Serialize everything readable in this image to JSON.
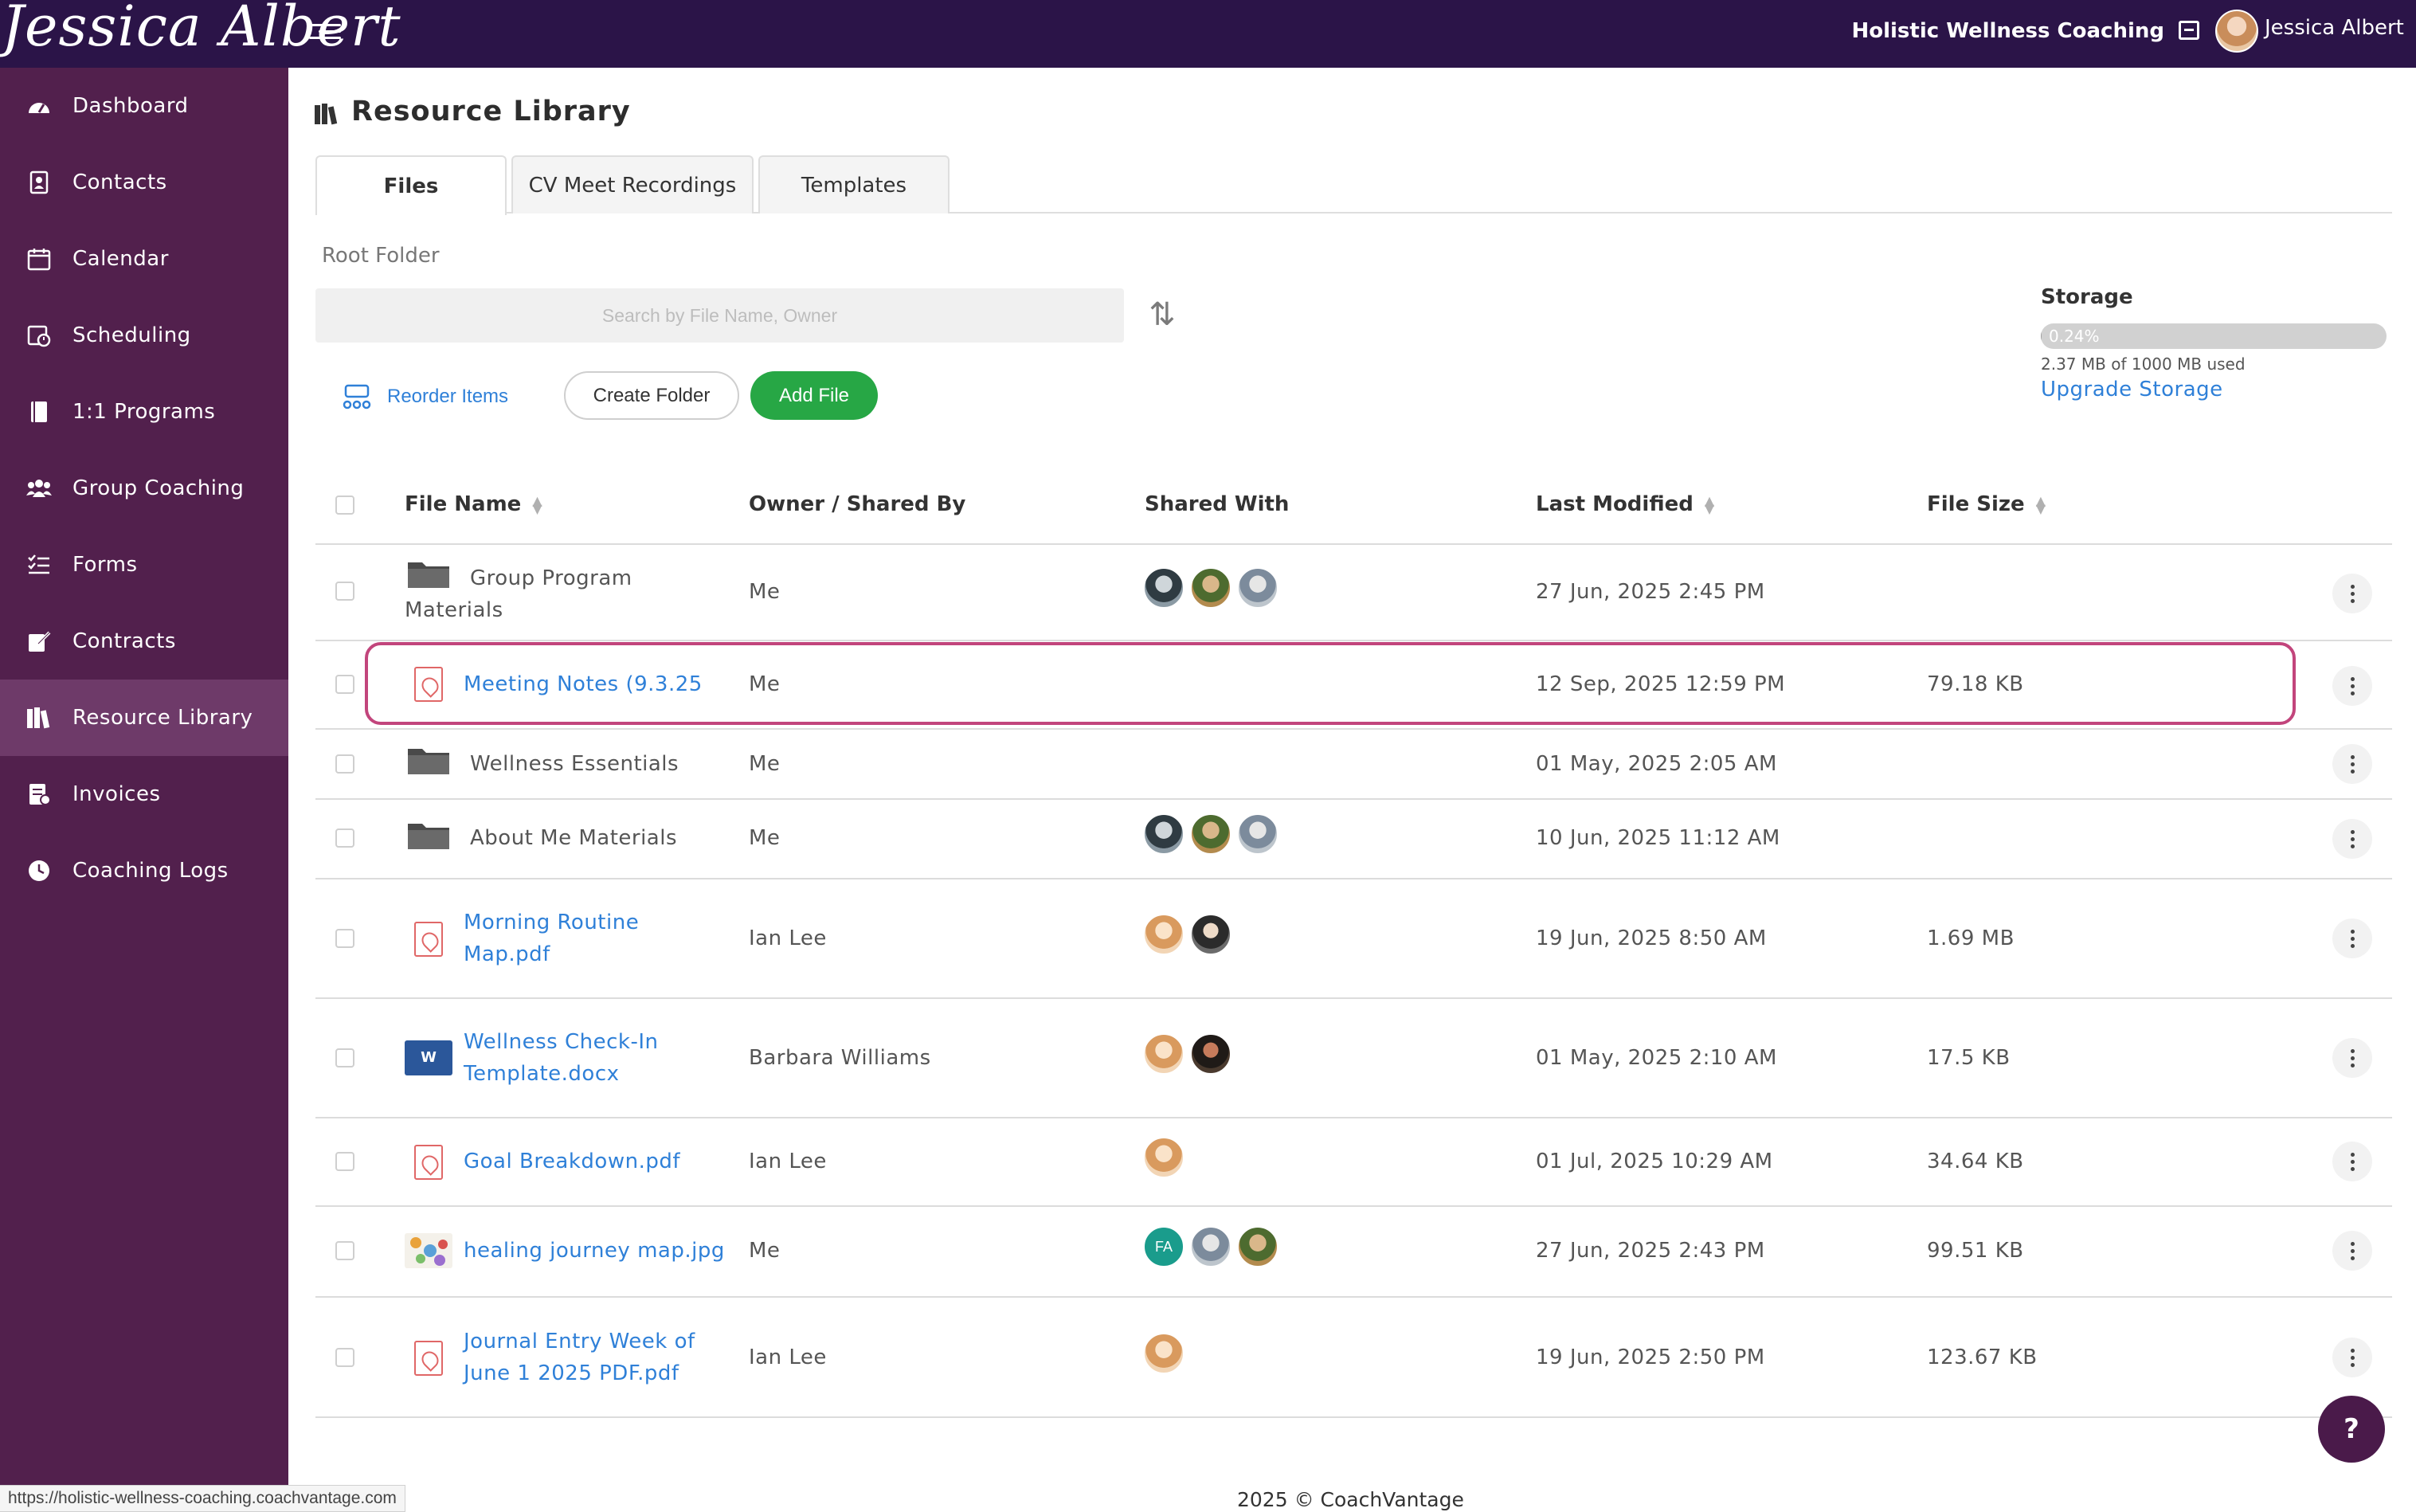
{
  "brand": {
    "logo_text": "Jessica Albert"
  },
  "header": {
    "org_name": "Holistic Wellness Coaching",
    "user_name": "Jessica Albert"
  },
  "sidebar": {
    "items": [
      {
        "label": "Dashboard",
        "icon": "dashboard-icon"
      },
      {
        "label": "Contacts",
        "icon": "contacts-icon"
      },
      {
        "label": "Calendar",
        "icon": "calendar-icon"
      },
      {
        "label": "Scheduling",
        "icon": "scheduling-icon"
      },
      {
        "label": "1:1 Programs",
        "icon": "book-icon"
      },
      {
        "label": "Group Coaching",
        "icon": "users-icon"
      },
      {
        "label": "Forms",
        "icon": "list-icon"
      },
      {
        "label": "Contracts",
        "icon": "signature-icon"
      },
      {
        "label": "Resource Library",
        "icon": "books-icon",
        "active": true
      },
      {
        "label": "Invoices",
        "icon": "invoice-icon"
      },
      {
        "label": "Coaching Logs",
        "icon": "clock-icon"
      }
    ]
  },
  "page": {
    "title": "Resource Library"
  },
  "tabs": [
    {
      "label": "Files",
      "active": true
    },
    {
      "label": "CV Meet Recordings",
      "active": false
    },
    {
      "label": "Templates",
      "active": false
    }
  ],
  "breadcrumb": {
    "label": "Root Folder"
  },
  "search": {
    "placeholder": "Search by File Name, Owner",
    "value": ""
  },
  "actions": {
    "reorder": "Reorder Items",
    "create_folder": "Create Folder",
    "add_file": "Add File"
  },
  "storage": {
    "title": "Storage",
    "percent_label": "0.24%",
    "fraction_used": 0.0024,
    "usage_text": "2.37 MB of 1000 MB used",
    "upgrade_label": "Upgrade Storage"
  },
  "table": {
    "columns": [
      "File Name",
      "Owner / Shared By",
      "Shared With",
      "Last Modified",
      "File Size"
    ],
    "rows": [
      {
        "type": "folder",
        "name": "Group Program Materials",
        "owner": "Me",
        "shared_with": [
          "av-a",
          "av-b",
          "av-c"
        ],
        "modified": "27 Jun, 2025 2:45 PM",
        "size": ""
      },
      {
        "type": "pdf",
        "name": "Meeting Notes (9.3.25",
        "owner": "Me",
        "shared_with": [],
        "modified": "12 Sep, 2025 12:59 PM",
        "size": "79.18 KB",
        "highlighted": true
      },
      {
        "type": "folder",
        "name": "Wellness Essentials",
        "owner": "Me",
        "shared_with": [],
        "modified": "01 May, 2025 2:05 AM",
        "size": ""
      },
      {
        "type": "folder",
        "name": "About Me Materials",
        "owner": "Me",
        "shared_with": [
          "av-a",
          "av-b",
          "av-c"
        ],
        "modified": "10 Jun, 2025 11:12 AM",
        "size": ""
      },
      {
        "type": "pdf",
        "name": "Morning Routine Map.pdf",
        "owner": "Ian Lee",
        "shared_with": [
          "av-d",
          "av-e"
        ],
        "modified": "19 Jun, 2025 8:50 AM",
        "size": "1.69 MB"
      },
      {
        "type": "docx",
        "name": "Wellness Check-In Template.docx",
        "owner": "Barbara Williams",
        "shared_with": [
          "av-d",
          "av-f"
        ],
        "modified": "01 May, 2025 2:10 AM",
        "size": "17.5 KB"
      },
      {
        "type": "pdf",
        "name": "Goal Breakdown.pdf",
        "owner": "Ian Lee",
        "shared_with": [
          "av-d"
        ],
        "modified": "01 Jul, 2025 10:29 AM",
        "size": "34.64 KB"
      },
      {
        "type": "image",
        "name": "healing journey map.jpg",
        "owner": "Me",
        "shared_with": [
          "FA",
          "av-c",
          "av-b"
        ],
        "modified": "27 Jun, 2025 2:43 PM",
        "size": "99.51 KB"
      },
      {
        "type": "pdf",
        "name": "Journal Entry Week of June 1 2025 PDF.pdf",
        "owner": "Ian Lee",
        "shared_with": [
          "av-d"
        ],
        "modified": "19 Jun, 2025 2:50 PM",
        "size": "123.67 KB"
      }
    ]
  },
  "avatar_initials": {
    "fa": "FA"
  },
  "help": {
    "label": "?"
  },
  "footer": {
    "text": "2025 © CoachVantage"
  },
  "status_bar": {
    "url": "https://holistic-wellness-coaching.coachvantage.com"
  },
  "colors": {
    "topbar": "#2b1448",
    "sidebar": "#52204d",
    "sidebar_active": "#6e3a69",
    "link": "#2f80d8",
    "add_button": "#27a745",
    "highlight_border": "#c2457c"
  }
}
